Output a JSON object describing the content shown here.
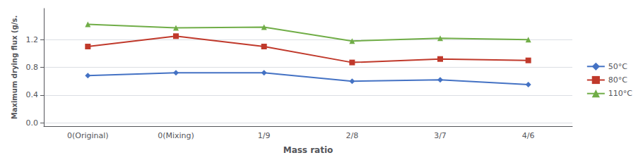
{
  "chart_data": {
    "type": "line",
    "categories": [
      "0(Original)",
      "0(Mixing)",
      "1/9",
      "2/8",
      "3/7",
      "4/6"
    ],
    "series": [
      {
        "name": "50°C",
        "color": "#4472C4",
        "marker": "diamond",
        "values": [
          0.68,
          0.72,
          0.72,
          0.6,
          0.62,
          0.55
        ]
      },
      {
        "name": "80°C",
        "color": "#C0392B",
        "marker": "square",
        "values": [
          1.1,
          1.25,
          1.1,
          0.87,
          0.92,
          0.9
        ]
      },
      {
        "name": "110°C",
        "color": "#70AD47",
        "marker": "triangle",
        "values": [
          1.42,
          1.37,
          1.38,
          1.18,
          1.22,
          1.2
        ]
      }
    ],
    "xlabel": "Mass ratio",
    "ylabel": "Maximum drying flux (g/s.",
    "ylim": [
      -0.05,
      1.65
    ],
    "yticks": [
      {
        "value": 0.0,
        "label": "0.0"
      },
      0.4,
      0.8,
      1.2
    ],
    "grid": true,
    "legend": "right"
  }
}
